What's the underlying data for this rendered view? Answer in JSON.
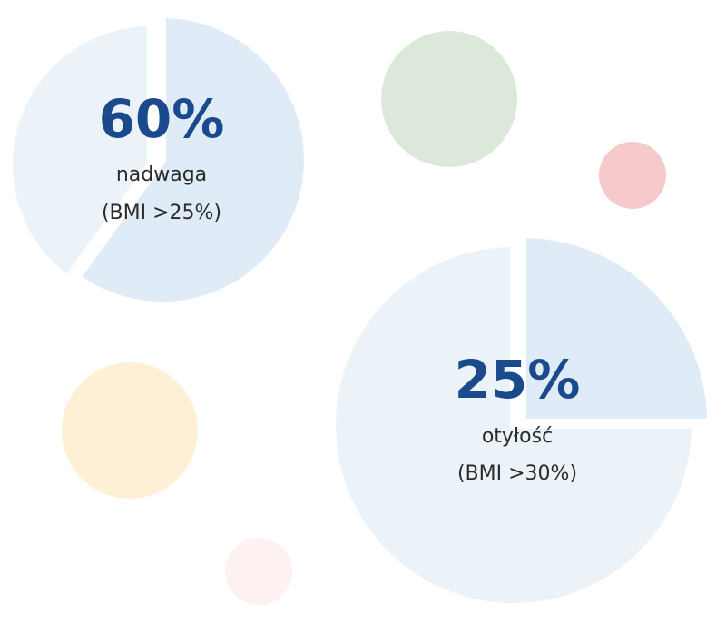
{
  "chart_data": [
    {
      "type": "pie",
      "values": [
        60
      ],
      "value_labels": [
        "60%"
      ],
      "title": "nadwaga",
      "subtitle": "(BMI >25%)",
      "colors": [
        "#dfecf7",
        "#ebf3f9"
      ]
    },
    {
      "type": "pie",
      "values": [
        25
      ],
      "value_labels": [
        "25%"
      ],
      "title": "otyłość",
      "subtitle": "(BMI >30%)",
      "colors": [
        "#dfecf7",
        "#ebf3f9"
      ]
    }
  ]
}
